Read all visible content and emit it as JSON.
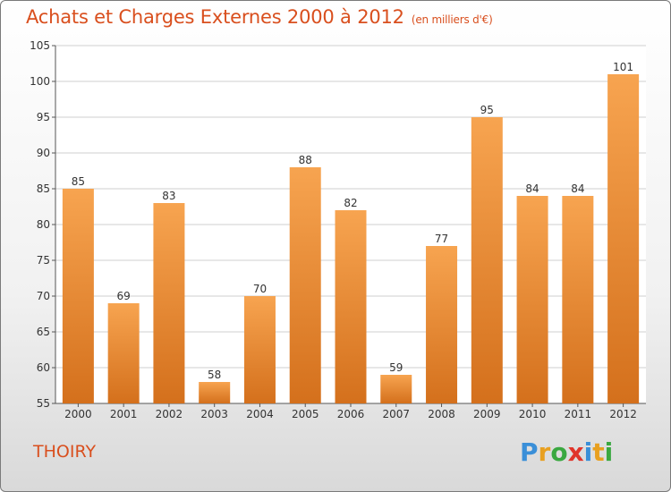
{
  "header": {
    "title": "Achats et Charges Externes 2000 à 2012",
    "unit": "(en milliers d'€)"
  },
  "location": "THOIRY",
  "logo": {
    "text": "Proxiti",
    "letters": [
      {
        "ch": "P",
        "color": "#3a8fd8"
      },
      {
        "ch": "r",
        "color": "#e8a020"
      },
      {
        "ch": "o",
        "color": "#3aa840"
      },
      {
        "ch": "x",
        "color": "#e0342a"
      },
      {
        "ch": "i",
        "color": "#3a8fd8"
      },
      {
        "ch": "t",
        "color": "#e8a020"
      },
      {
        "ch": "i",
        "color": "#3aa840"
      }
    ]
  },
  "colors": {
    "bar_top": "#f7a450",
    "bar_bottom": "#d4701c",
    "accent": "#d94f1e",
    "grid": "#cfcfcf"
  },
  "chart_data": {
    "type": "bar",
    "title": "Achats et Charges Externes 2000 à 2012",
    "subtitle": "(en milliers d'€)",
    "xlabel": "",
    "ylabel": "",
    "categories": [
      "2000",
      "2001",
      "2002",
      "2003",
      "2004",
      "2005",
      "2006",
      "2007",
      "2008",
      "2009",
      "2010",
      "2011",
      "2012"
    ],
    "values": [
      85,
      69,
      83,
      58,
      70,
      88,
      82,
      59,
      77,
      95,
      84,
      84,
      101
    ],
    "ylim": [
      55,
      105
    ],
    "yticks": [
      55,
      60,
      65,
      70,
      75,
      80,
      85,
      90,
      95,
      100,
      105
    ],
    "grid": true,
    "data_labels": true
  }
}
